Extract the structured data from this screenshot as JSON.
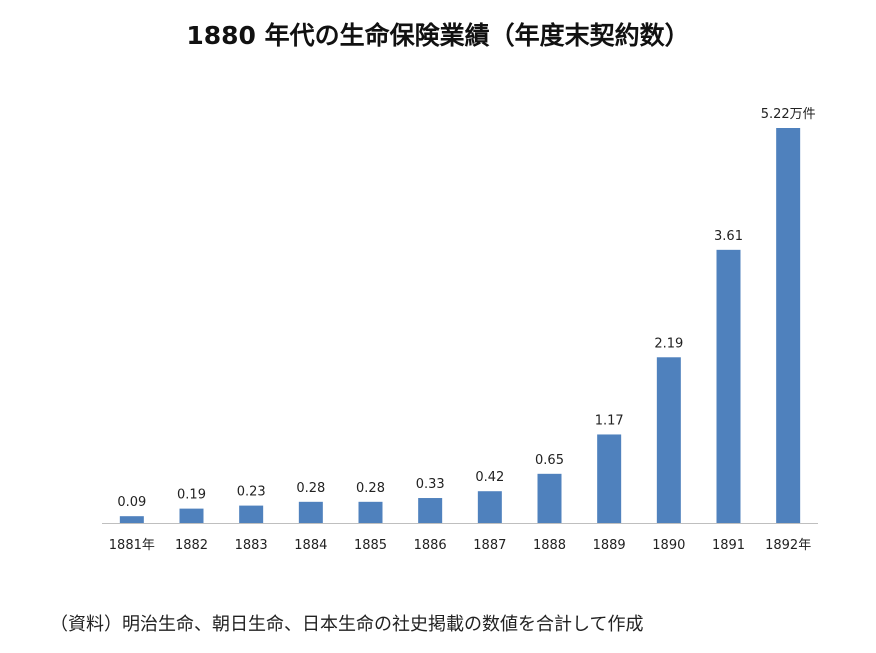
{
  "title": "1880 年代の生命保険業績（年度末契約数）",
  "source_note": "（資料）明治生命、朝日生命、日本生命の社史掲載の数値を合計して作成",
  "chart_data": {
    "type": "bar",
    "title": "1880 年代の生命保険業績（年度末契約数）",
    "categories": [
      "1881年",
      "1882",
      "1883",
      "1884",
      "1885",
      "1886",
      "1887",
      "1888",
      "1889",
      "1890",
      "1891",
      "1892年"
    ],
    "values": [
      0.09,
      0.19,
      0.23,
      0.28,
      0.28,
      0.33,
      0.42,
      0.65,
      1.17,
      2.19,
      3.61,
      5.22
    ],
    "data_labels": [
      "0.09",
      "0.19",
      "0.23",
      "0.28",
      "0.28",
      "0.33",
      "0.42",
      "0.65",
      "1.17",
      "2.19",
      "3.61",
      "5.22万件"
    ],
    "ylim": [
      0,
      5.22
    ],
    "grid": false,
    "bar_color": "#4f81bd"
  }
}
